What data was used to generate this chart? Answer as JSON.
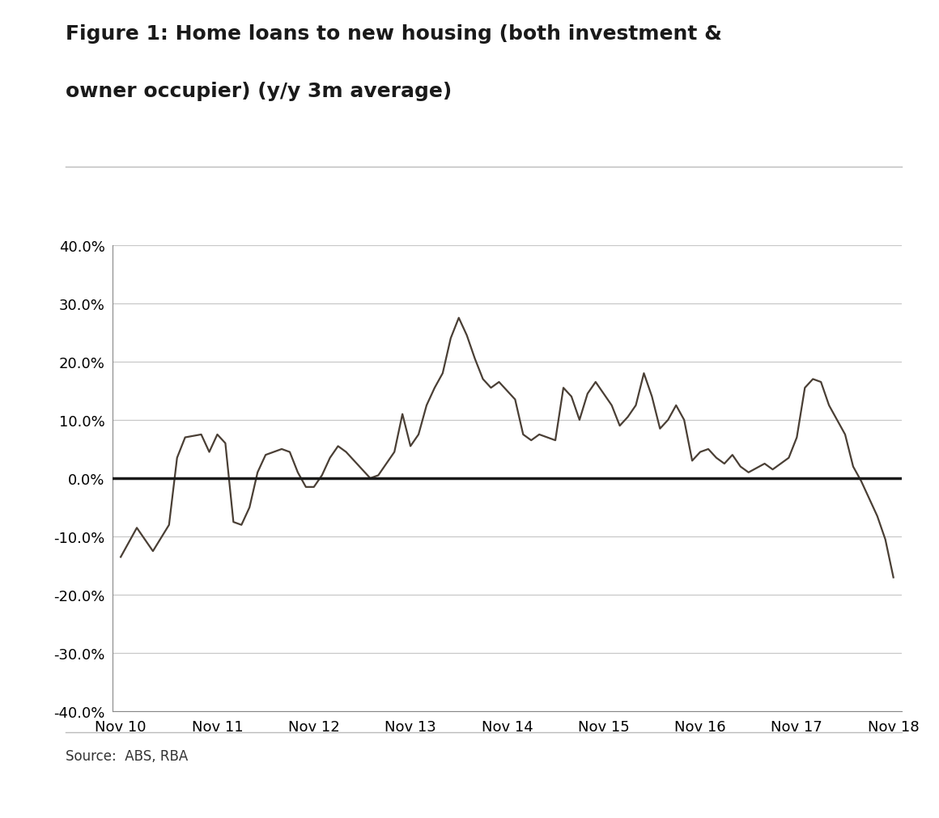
{
  "title_line1": "Figure 1: Home loans to new housing (both investment &",
  "title_line2": "owner occupier) (y/y 3m average)",
  "source": "Source:  ABS, RBA",
  "line_color": "#4a3f35",
  "zero_line_color": "#1a1a1a",
  "background_color": "#ffffff",
  "grid_color": "#c8c8c8",
  "ylim": [
    -40.0,
    40.0
  ],
  "yticks": [
    -40,
    -30,
    -20,
    -10,
    0,
    10,
    20,
    30,
    40
  ],
  "x_labels": [
    "Nov 10",
    "Nov 11",
    "Nov 12",
    "Nov 13",
    "Nov 14",
    "Nov 15",
    "Nov 16",
    "Nov 17",
    "Nov 18"
  ],
  "x_values": [
    0,
    12,
    24,
    36,
    48,
    60,
    72,
    84,
    96
  ],
  "data_x": [
    0,
    2,
    4,
    6,
    7,
    8,
    10,
    11,
    12,
    13,
    14,
    15,
    16,
    17,
    18,
    20,
    21,
    22,
    23,
    24,
    25,
    26,
    27,
    28,
    30,
    31,
    32,
    33,
    34,
    35,
    36,
    37,
    38,
    39,
    40,
    41,
    42,
    43,
    44,
    45,
    46,
    47,
    48,
    49,
    50,
    51,
    52,
    54,
    55,
    56,
    57,
    58,
    59,
    60,
    61,
    62,
    63,
    64,
    65,
    66,
    67,
    68,
    69,
    70,
    71,
    72,
    73,
    74,
    75,
    76,
    77,
    78,
    80,
    81,
    82,
    83,
    84,
    85,
    86,
    87,
    88,
    89,
    90,
    91,
    92,
    93,
    94,
    95,
    96
  ],
  "data_y": [
    -13.5,
    -8.5,
    -12.5,
    -8.0,
    3.5,
    7.0,
    7.5,
    4.5,
    7.5,
    6.0,
    -7.5,
    -8.0,
    -5.0,
    1.0,
    4.0,
    5.0,
    4.5,
    1.0,
    -1.5,
    -1.5,
    0.5,
    3.5,
    5.5,
    4.5,
    1.5,
    0.0,
    0.5,
    2.5,
    4.5,
    11.0,
    5.5,
    7.5,
    12.5,
    15.5,
    18.0,
    24.0,
    27.5,
    24.5,
    20.5,
    17.0,
    15.5,
    16.5,
    15.0,
    13.5,
    7.5,
    6.5,
    7.5,
    6.5,
    15.5,
    14.0,
    10.0,
    14.5,
    16.5,
    14.5,
    12.5,
    9.0,
    10.5,
    12.5,
    18.0,
    14.0,
    8.5,
    10.0,
    12.5,
    10.0,
    3.0,
    4.5,
    5.0,
    3.5,
    2.5,
    4.0,
    2.0,
    1.0,
    2.5,
    1.5,
    2.5,
    3.5,
    7.0,
    15.5,
    17.0,
    16.5,
    12.5,
    10.0,
    7.5,
    2.0,
    -0.5,
    -3.5,
    -6.5,
    -10.5,
    -17.0
  ]
}
